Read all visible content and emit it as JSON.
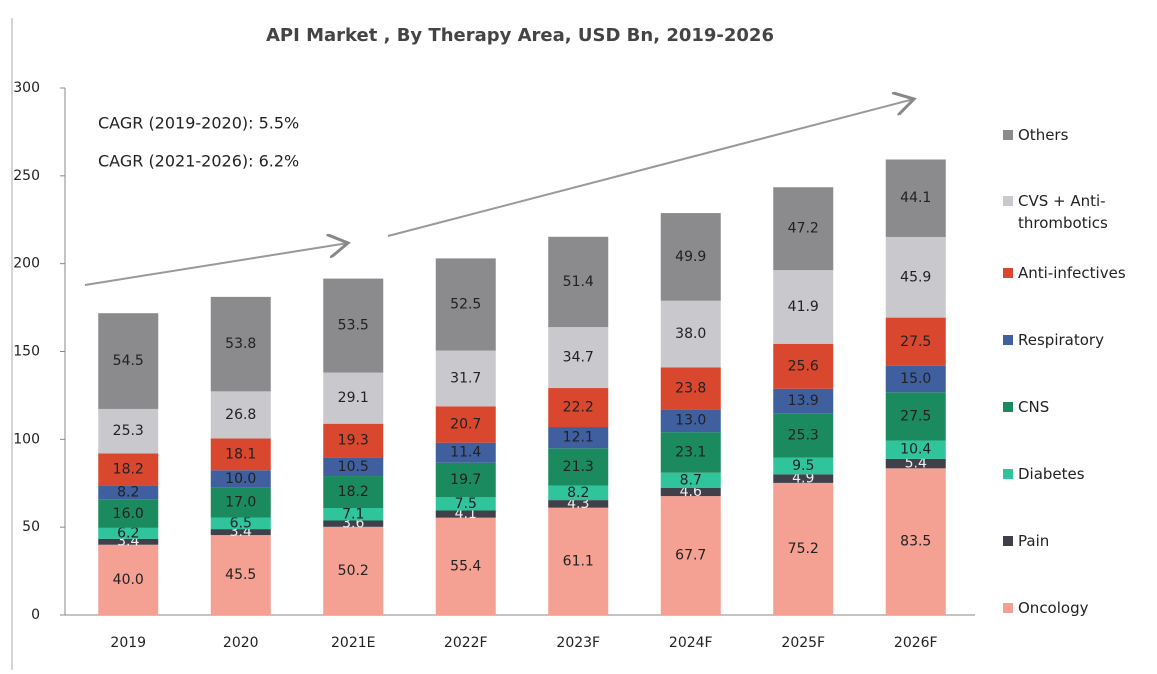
{
  "chart_data": {
    "type": "stacked_bar",
    "title": "API Market , By Therapy Area, USD  Bn, 2019-2026",
    "annotations": [
      "CAGR (2019-2020): 5.5%",
      "CAGR (2021-2026): 6.2%"
    ],
    "categories": [
      "2019",
      "2020",
      "2021E",
      "2022F",
      "2023F",
      "2024F",
      "2025F",
      "2026F"
    ],
    "ylim": [
      0,
      300
    ],
    "yticks": [
      0,
      50,
      100,
      150,
      200,
      250,
      300
    ],
    "series": [
      {
        "name": "Oncology",
        "color": "#f4a193",
        "values": [
          40.0,
          45.5,
          50.2,
          55.4,
          61.1,
          67.7,
          75.2,
          83.5
        ],
        "value_labels": [
          "40.0",
          "45.5",
          "50.2",
          "55.4",
          "61.1",
          "67.7",
          "75.2",
          "83.5"
        ]
      },
      {
        "name": "Pain",
        "color": "#40404a",
        "values": [
          3.4,
          3.4,
          3.6,
          4.1,
          4.3,
          4.6,
          4.9,
          5.4
        ],
        "value_labels": [
          "3.4",
          "3.4",
          "3.6",
          "4.1",
          "4.3",
          "4.6",
          "4.9",
          "5.4"
        ]
      },
      {
        "name": "Diabetes",
        "color": "#2fc49b",
        "values": [
          6.2,
          6.5,
          7.1,
          7.5,
          8.2,
          8.7,
          9.5,
          10.4
        ],
        "value_labels": [
          "6.2",
          "6.5",
          "7.1",
          "7.5",
          "8.2",
          "8.7",
          "9.5",
          "10.4"
        ]
      },
      {
        "name": "CNS",
        "color": "#1b8a5f",
        "values": [
          16.0,
          17.0,
          18.2,
          19.7,
          21.3,
          23.1,
          25.3,
          27.5
        ],
        "value_labels": [
          "16.0",
          "17.0",
          "18.2",
          "19.7",
          "21.3",
          "23.1",
          "25.3",
          "27.5"
        ]
      },
      {
        "name": "Respiratory",
        "color": "#3f5f9f",
        "values": [
          8.2,
          10.0,
          10.5,
          11.4,
          12.1,
          13.0,
          13.9,
          15.0
        ],
        "value_labels": [
          "8.2",
          "10.0",
          "10.5",
          "11.4",
          "12.1",
          "13.0",
          "13.9",
          "15.0"
        ]
      },
      {
        "name": "Anti-infectives",
        "color": "#d9472f",
        "values": [
          18.2,
          18.1,
          19.3,
          20.7,
          22.2,
          23.8,
          25.6,
          27.5
        ],
        "value_labels": [
          "18.2",
          "18.1",
          "19.3",
          "20.7",
          "22.2",
          "23.8",
          "25.6",
          "27.5"
        ]
      },
      {
        "name": "CVS + Anti-thrombotics",
        "color": "#c9c9cd",
        "values": [
          25.3,
          26.8,
          29.1,
          31.7,
          34.7,
          38.0,
          41.9,
          45.9
        ],
        "value_labels": [
          "25.3",
          "26.8",
          "29.1",
          "31.7",
          "34.7",
          "38.0",
          "41.9",
          "45.9"
        ]
      },
      {
        "name": "Others",
        "color": "#8b8b8d",
        "values": [
          54.5,
          53.8,
          53.5,
          52.5,
          51.4,
          49.9,
          47.2,
          44.1
        ],
        "value_labels": [
          "54.5",
          "53.8",
          "53.5",
          "52.5",
          "51.4",
          "49.9",
          "47.2",
          "44.1"
        ]
      }
    ]
  }
}
